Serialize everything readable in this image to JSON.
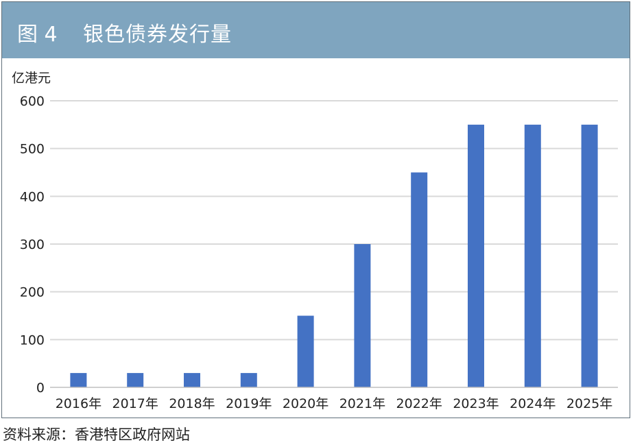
{
  "header": {
    "figure_label": "图 4",
    "title": "银色债券发行量"
  },
  "source": "资料来源：香港特区政府网站",
  "colors": {
    "header_bg": "#7fa5bf",
    "bar": "#4472c4",
    "grid": "#d9d9d9"
  },
  "chart_data": {
    "type": "bar",
    "title": "银色债券发行量",
    "ylabel": "亿港元",
    "xlabel": "",
    "categories": [
      "2016年",
      "2017年",
      "2018年",
      "2019年",
      "2020年",
      "2021年",
      "2022年",
      "2023年",
      "2024年",
      "2025年"
    ],
    "values": [
      30,
      30,
      30,
      30,
      150,
      300,
      450,
      550,
      550,
      550
    ],
    "ylim": [
      0,
      600
    ],
    "yticks": [
      0,
      100,
      200,
      300,
      400,
      500,
      600
    ],
    "grid": true,
    "legend": "none"
  }
}
